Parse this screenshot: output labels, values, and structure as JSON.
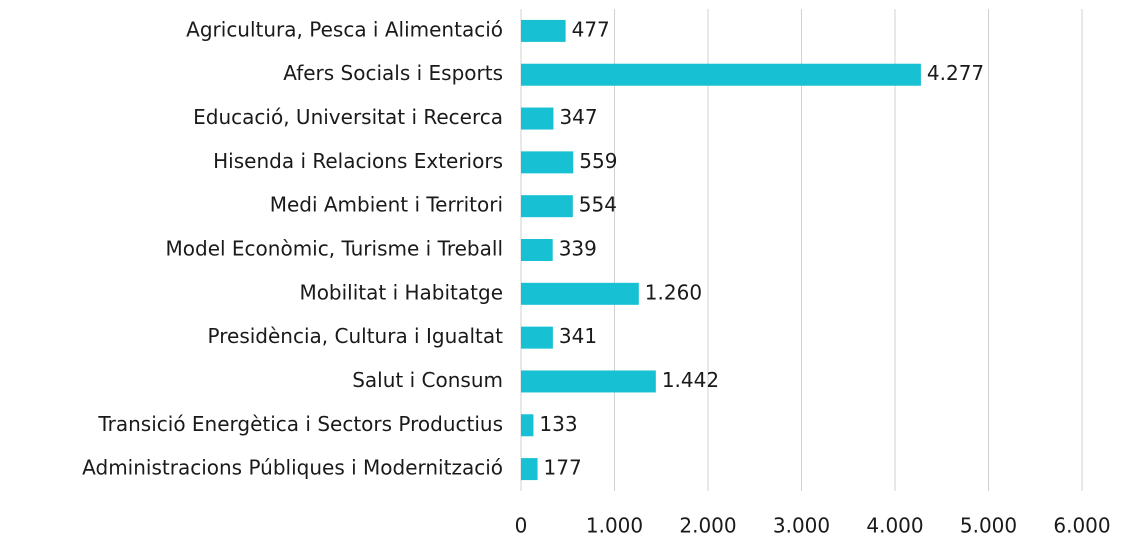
{
  "chart_data": {
    "type": "bar",
    "orientation": "horizontal",
    "categories": [
      "Agricultura, Pesca i Alimentació",
      "Afers Socials i Esports",
      "Educació, Universitat i Recerca",
      "Hisenda i Relacions Exteriors",
      "Medi Ambient i Territori",
      "Model Econòmic, Turisme i Treball",
      "Mobilitat i Habitatge",
      "Presidència, Cultura i Igualtat",
      "Salut i Consum",
      "Transició Energètica i Sectors Productius",
      "Administracions Públiques i Modernització"
    ],
    "values": [
      477,
      4277,
      347,
      559,
      554,
      339,
      1260,
      341,
      1442,
      133,
      177
    ],
    "value_labels": [
      "477",
      "4.277",
      "347",
      "559",
      "554",
      "339",
      "1.260",
      "341",
      "1.442",
      "133",
      "177"
    ],
    "color": "#17c0d3",
    "xlim": [
      0,
      6000
    ],
    "xticks": [
      0,
      {
        "value": 1000,
        "label": "1.000"
      },
      {
        "value": 2000,
        "label": "2.000"
      },
      {
        "value": 3000,
        "label": "3.000"
      },
      {
        "value": 4000,
        "label": "4.000"
      },
      {
        "value": 5000,
        "label": "5.000"
      },
      {
        "value": 6000,
        "label": "6.000"
      }
    ],
    "grid": true
  }
}
